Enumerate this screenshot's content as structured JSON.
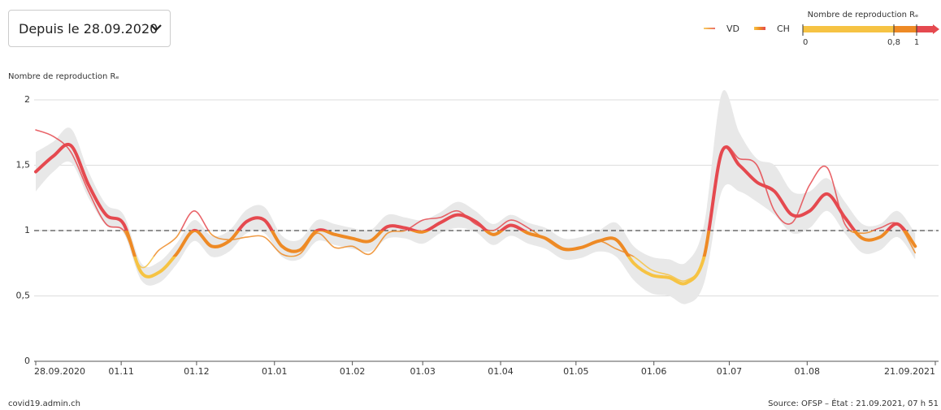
{
  "dropdown": {
    "label": "Depuis le 28.09.2020"
  },
  "footer": {
    "left": "covid19.admin.ch",
    "right": "Source: OFSP – État : 21.09.2021, 07 h 51"
  },
  "chart_data": {
    "type": "line",
    "y_label": "Nombre de reproduction Rₑ",
    "x": [
      "2020-09-28",
      "2020-10-05",
      "2020-10-12",
      "2020-10-19",
      "2020-10-26",
      "2020-11-02",
      "2020-11-09",
      "2020-11-16",
      "2020-11-23",
      "2020-11-30",
      "2020-12-07",
      "2020-12-14",
      "2020-12-21",
      "2020-12-28",
      "2021-01-04",
      "2021-01-11",
      "2021-01-18",
      "2021-01-25",
      "2021-02-01",
      "2021-02-08",
      "2021-02-15",
      "2021-02-22",
      "2021-03-01",
      "2021-03-08",
      "2021-03-15",
      "2021-03-22",
      "2021-03-29",
      "2021-04-05",
      "2021-04-12",
      "2021-04-19",
      "2021-04-26",
      "2021-05-03",
      "2021-05-10",
      "2021-05-17",
      "2021-05-24",
      "2021-05-31",
      "2021-06-07",
      "2021-06-14",
      "2021-06-21",
      "2021-06-28",
      "2021-07-05",
      "2021-07-12",
      "2021-07-19",
      "2021-07-26",
      "2021-08-02",
      "2021-08-09",
      "2021-08-16",
      "2021-08-23",
      "2021-08-30",
      "2021-09-06",
      "2021-09-13"
    ],
    "series": [
      {
        "name": "VD",
        "values": [
          1.77,
          1.72,
          1.6,
          1.3,
          1.05,
          1.0,
          0.72,
          0.85,
          0.95,
          1.15,
          0.97,
          0.93,
          0.95,
          0.95,
          0.82,
          0.82,
          0.98,
          0.87,
          0.88,
          0.82,
          0.98,
          1.0,
          1.08,
          1.1,
          1.15,
          1.05,
          1.0,
          1.08,
          1.02,
          0.93,
          0.85,
          0.87,
          0.92,
          0.86,
          0.8,
          0.7,
          0.66,
          0.62,
          0.8,
          1.6,
          1.55,
          1.5,
          1.15,
          1.06,
          1.35,
          1.48,
          1.05,
          0.98,
          1.02,
          1.05,
          0.83
        ]
      },
      {
        "name": "CH",
        "values": [
          1.45,
          1.57,
          1.65,
          1.35,
          1.12,
          1.05,
          0.68,
          0.68,
          0.82,
          1.0,
          0.88,
          0.92,
          1.07,
          1.08,
          0.88,
          0.85,
          1.0,
          0.97,
          0.94,
          0.92,
          1.03,
          1.02,
          0.99,
          1.06,
          1.12,
          1.07,
          0.97,
          1.04,
          0.98,
          0.94,
          0.86,
          0.87,
          0.92,
          0.93,
          0.75,
          0.66,
          0.64,
          0.6,
          0.8,
          1.6,
          1.5,
          1.37,
          1.3,
          1.12,
          1.15,
          1.28,
          1.1,
          0.94,
          0.95,
          1.05,
          0.88
        ],
        "upper": [
          1.6,
          1.68,
          1.78,
          1.45,
          1.2,
          1.12,
          0.75,
          0.76,
          0.9,
          1.08,
          0.96,
          1.0,
          1.16,
          1.18,
          0.96,
          0.93,
          1.08,
          1.05,
          1.02,
          1.0,
          1.12,
          1.1,
          1.08,
          1.14,
          1.22,
          1.15,
          1.05,
          1.12,
          1.06,
          1.02,
          0.94,
          0.95,
          1.0,
          1.06,
          0.88,
          0.8,
          0.78,
          0.76,
          1.05,
          2.05,
          1.75,
          1.55,
          1.5,
          1.3,
          1.3,
          1.4,
          1.22,
          1.05,
          1.05,
          1.15,
          0.98
        ],
        "lower": [
          1.3,
          1.45,
          1.52,
          1.25,
          1.04,
          0.98,
          0.62,
          0.6,
          0.74,
          0.92,
          0.8,
          0.84,
          0.98,
          0.98,
          0.8,
          0.78,
          0.92,
          0.89,
          0.86,
          0.84,
          0.94,
          0.94,
          0.9,
          0.98,
          1.02,
          0.99,
          0.89,
          0.96,
          0.9,
          0.86,
          0.78,
          0.79,
          0.84,
          0.8,
          0.62,
          0.52,
          0.5,
          0.44,
          0.6,
          1.3,
          1.3,
          1.22,
          1.12,
          0.98,
          1.02,
          1.15,
          0.98,
          0.83,
          0.85,
          0.95,
          0.78
        ],
        "band_color": "#e8e8e8"
      }
    ],
    "xlim": [
      "2020-09-28",
      "2021-09-21"
    ],
    "xticks": [
      {
        "value": "2020-09-28",
        "label": "28.09.2020"
      },
      {
        "value": "2020-11-01",
        "label": "01.11"
      },
      {
        "value": "2020-12-01",
        "label": "01.12"
      },
      {
        "value": "2021-01-01",
        "label": "01.01"
      },
      {
        "value": "2021-02-01",
        "label": "01.02"
      },
      {
        "value": "2021-03-01",
        "label": "01.03"
      },
      {
        "value": "2021-04-01",
        "label": "01.04"
      },
      {
        "value": "2021-05-01",
        "label": "01.05"
      },
      {
        "value": "2021-06-01",
        "label": "01.06"
      },
      {
        "value": "2021-07-01",
        "label": "01.07"
      },
      {
        "value": "2021-08-01",
        "label": "01.08"
      },
      {
        "value": "2021-09-21",
        "label": "21.09.2021"
      }
    ],
    "ylim": [
      0,
      2
    ],
    "yticks": [
      0,
      {
        "value": 0.5,
        "label": "0,5"
      },
      1,
      {
        "value": 1.5,
        "label": "1,5"
      },
      2
    ],
    "grid": true,
    "reference_line": 1,
    "legend": "top-right",
    "color_scale": {
      "title": "Nombre de reproduction Rₑ",
      "ticks": [
        0,
        {
          "value": 0.8,
          "label": "0,8"
        },
        1
      ],
      "colors": [
        "#f6c343",
        "#ee8a25",
        "#e5494f"
      ]
    }
  }
}
